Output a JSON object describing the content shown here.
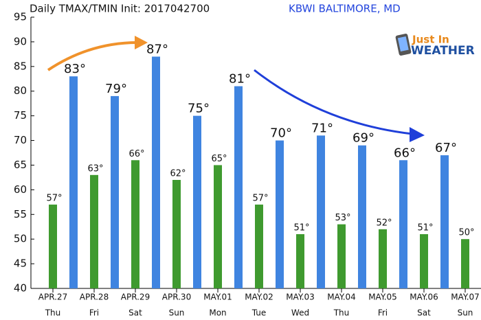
{
  "chart_data": {
    "type": "bar",
    "title": "Daily TMAX/TMIN Init: 2017042700",
    "subtitle": "KBWI BALTIMORE, MD",
    "logo": {
      "line1": "Just In",
      "line2": "WEATHER"
    },
    "categories": [
      "APR.27",
      "APR.28",
      "APR.29",
      "APR.30",
      "MAY.01",
      "MAY.02",
      "MAY.03",
      "MAY.04",
      "MAY.05",
      "MAY.06",
      "MAY.07"
    ],
    "weekdays": [
      "Thu",
      "Fri",
      "Sat",
      "Sun",
      "Mon",
      "Tue",
      "Wed",
      "Thu",
      "Fri",
      "Sat",
      "Sun"
    ],
    "series": [
      {
        "color": "#3f9a2f",
        "values": [
          57,
          63,
          66,
          62,
          65,
          57,
          51,
          53,
          52,
          51,
          50
        ],
        "value_labels": [
          "57°",
          "63°",
          "66°",
          "62°",
          "65°",
          "57°",
          "51°",
          "53°",
          "52°",
          "51°",
          "50°"
        ]
      },
      {
        "color": "#3f84e0",
        "values": [
          83,
          79,
          87,
          75,
          81,
          70,
          71,
          69,
          66,
          67,
          null
        ],
        "value_labels": [
          "83°",
          "79°",
          "87°",
          "75°",
          "81°",
          "70°",
          "71°",
          "69°",
          "66°",
          "67°",
          null
        ]
      }
    ],
    "ylim": [
      40,
      95
    ],
    "yticks": [
      40,
      45,
      50,
      55,
      60,
      65,
      70,
      75,
      80,
      85,
      90,
      95
    ],
    "grid": false
  }
}
